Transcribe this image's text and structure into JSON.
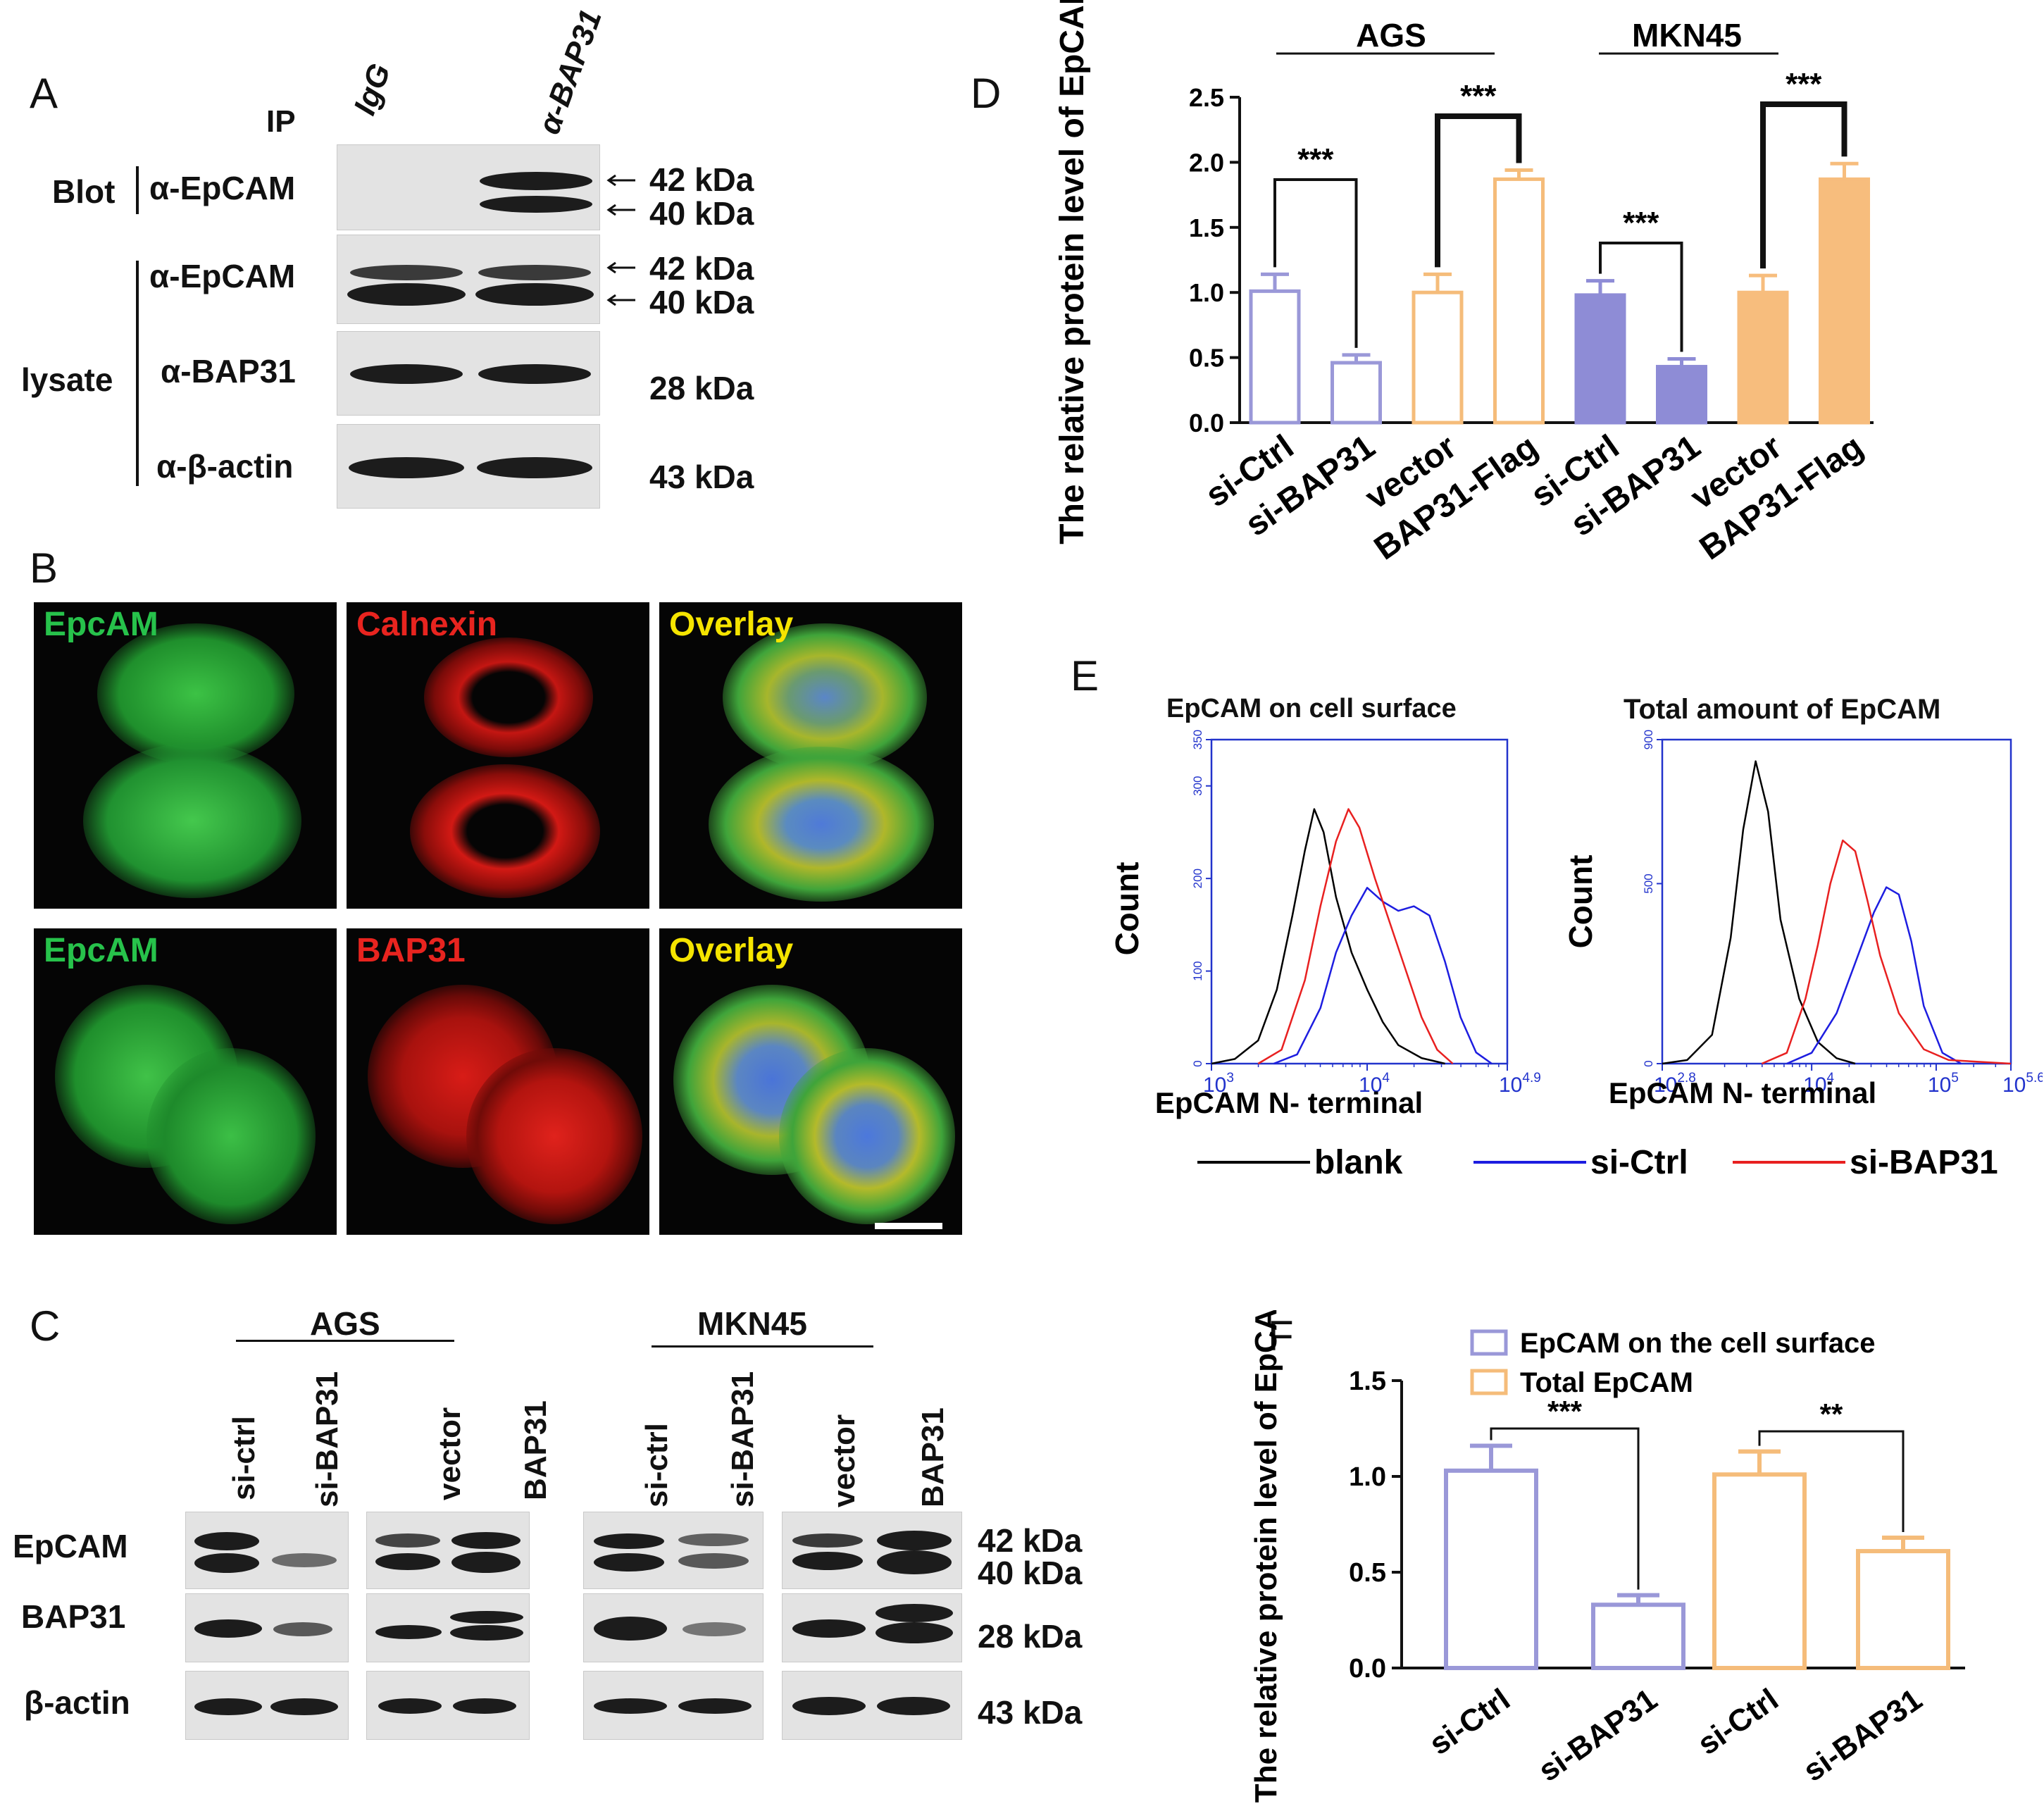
{
  "panel_a": {
    "letter": "A",
    "ip_label": "IP",
    "lane_igg": "IgG",
    "lane_bap31": "α-BAP31",
    "blot_label": "Blot",
    "lysate_label": "lysate",
    "rows": [
      {
        "antibody": "α-EpCAM",
        "sizes": [
          "42 kDa",
          "40 kDa"
        ]
      },
      {
        "antibody": "α-EpCAM",
        "sizes": [
          "42 kDa",
          "40 kDa"
        ]
      },
      {
        "antibody": "α-BAP31",
        "sizes": [
          "28 kDa"
        ]
      },
      {
        "antibody": "α-β-actin",
        "sizes": [
          "43 kDa"
        ]
      }
    ]
  },
  "panel_b": {
    "letter": "B",
    "row1": [
      "EpcAM",
      "Calnexin",
      "Overlay"
    ],
    "row2": [
      "EpcAM",
      "BAP31",
      "Overlay"
    ],
    "colors": {
      "green": "#27c24b",
      "red": "#e8241f",
      "yellow": "#f5e400"
    }
  },
  "panel_c": {
    "letter": "C",
    "group_ags": "AGS",
    "group_mkn45": "MKN45",
    "lanes": [
      "si-ctrl",
      "si-BAP31",
      "vector",
      "BAP31",
      "si-ctrl",
      "si-BAP31",
      "vector",
      "BAP31"
    ],
    "rows": [
      "EpCAM",
      "BAP31",
      "β-actin"
    ],
    "sizes": [
      "42 kDa",
      "40 kDa",
      "28 kDa",
      "43 kDa"
    ]
  },
  "panel_d": {
    "letter": "D",
    "group_ags": "AGS",
    "group_mkn45": "MKN45",
    "sig": [
      "***",
      "***",
      "***",
      "***"
    ]
  },
  "panel_e": {
    "letter": "E",
    "left_title": "EpCAM on cell surface",
    "right_title": "Total amount of EpCAM",
    "ylabel": "Count",
    "xlabel": "EpCAM N- terminal",
    "left_yticks": [
      "0",
      "100",
      "200",
      "300",
      "350"
    ],
    "right_yticks": [
      "0",
      "500",
      "900"
    ],
    "left_xticks": [
      {
        "base": "10",
        "exp": "3"
      },
      {
        "base": "10",
        "exp": "4"
      },
      {
        "base": "10",
        "exp": "4.9"
      }
    ],
    "right_xticks": [
      {
        "base": "10",
        "exp": "2.8"
      },
      {
        "base": "10",
        "exp": "4"
      },
      {
        "base": "10",
        "exp": "5"
      },
      {
        "base": "10",
        "exp": "5.6"
      }
    ],
    "legend": [
      {
        "label": "blank",
        "color": "#000000"
      },
      {
        "label": "si-Ctrl",
        "color": "#1d1de0"
      },
      {
        "label": "si-BAP31",
        "color": "#e82020"
      }
    ]
  },
  "panel_f": {
    "letter": "F",
    "sig": [
      "***",
      "**"
    ]
  },
  "chart_data": [
    {
      "type": "bar",
      "panel": "D",
      "ylabel": "The relative protein level of EpCAM",
      "ylim": [
        0,
        2.5
      ],
      "yticks": [
        "0.0",
        "0.5",
        "1.0",
        "1.5",
        "2.0",
        "2.5"
      ],
      "categories": [
        "si-Ctrl",
        "si-BAP31",
        "vector",
        "BAP31-Flag",
        "si-Ctrl",
        "si-BAP31",
        "vector",
        "BAP31-Flag"
      ],
      "values": [
        1.01,
        0.46,
        1.0,
        1.87,
        0.98,
        0.43,
        1.0,
        1.87
      ],
      "errors": [
        0.13,
        0.06,
        0.14,
        0.07,
        0.11,
        0.06,
        0.13,
        0.12
      ],
      "filled": [
        false,
        false,
        false,
        false,
        true,
        true,
        true,
        true
      ],
      "colors": [
        "#9a98d8",
        "#9a98d8",
        "#f5bc7a",
        "#f5bc7a",
        "#8e8cd6",
        "#8e8cd6",
        "#f7bd7d",
        "#f7bd7d"
      ]
    },
    {
      "type": "line",
      "panel": "E-left",
      "title": "EpCAM on cell surface",
      "xlabel": "EpCAM N- terminal",
      "ylabel": "Count",
      "xlim_log10": [
        3,
        4.9
      ],
      "ylim": [
        0,
        350
      ],
      "series": [
        {
          "name": "blank",
          "color": "#000000",
          "x": [
            3.0,
            3.15,
            3.3,
            3.42,
            3.52,
            3.6,
            3.66,
            3.72,
            3.8,
            3.9,
            4.0,
            4.1,
            4.2,
            4.35,
            4.5
          ],
          "y": [
            0,
            5,
            25,
            80,
            160,
            230,
            275,
            250,
            180,
            120,
            80,
            45,
            20,
            6,
            0
          ]
        },
        {
          "name": "si-Ctrl",
          "color": "#1d1de0",
          "x": [
            3.4,
            3.55,
            3.7,
            3.8,
            3.9,
            4.0,
            4.1,
            4.2,
            4.3,
            4.4,
            4.5,
            4.6,
            4.7,
            4.8
          ],
          "y": [
            0,
            10,
            60,
            120,
            160,
            190,
            175,
            165,
            170,
            160,
            110,
            50,
            12,
            0
          ]
        },
        {
          "name": "si-BAP31",
          "color": "#e82020",
          "x": [
            3.3,
            3.45,
            3.6,
            3.7,
            3.8,
            3.88,
            3.95,
            4.05,
            4.15,
            4.25,
            4.35,
            4.45,
            4.55
          ],
          "y": [
            0,
            15,
            90,
            170,
            240,
            275,
            255,
            200,
            150,
            100,
            50,
            15,
            0
          ]
        }
      ]
    },
    {
      "type": "line",
      "panel": "E-right",
      "title": "Total amount of EpCAM",
      "xlabel": "EpCAM N- terminal",
      "ylabel": "Count",
      "xlim_log10": [
        2.8,
        5.6
      ],
      "ylim": [
        0,
        900
      ],
      "series": [
        {
          "name": "blank",
          "color": "#000000",
          "x": [
            2.8,
            3.0,
            3.2,
            3.35,
            3.45,
            3.55,
            3.65,
            3.75,
            3.9,
            4.05,
            4.2,
            4.35
          ],
          "y": [
            0,
            10,
            80,
            350,
            650,
            840,
            700,
            400,
            180,
            60,
            15,
            0
          ]
        },
        {
          "name": "si-Ctrl",
          "color": "#1d1de0",
          "x": [
            3.8,
            4.0,
            4.2,
            4.35,
            4.5,
            4.6,
            4.7,
            4.8,
            4.9,
            5.05,
            5.2
          ],
          "y": [
            0,
            30,
            140,
            280,
            420,
            490,
            470,
            340,
            160,
            30,
            0
          ]
        },
        {
          "name": "si-BAP31",
          "color": "#e82020",
          "x": [
            3.6,
            3.8,
            3.95,
            4.05,
            4.15,
            4.25,
            4.35,
            4.45,
            4.55,
            4.7,
            4.9,
            5.1,
            5.6
          ],
          "y": [
            0,
            30,
            180,
            330,
            500,
            620,
            590,
            450,
            300,
            140,
            40,
            10,
            0
          ]
        }
      ]
    },
    {
      "type": "bar",
      "panel": "F",
      "ylabel": "The relative protein level of EpCAM",
      "ylim": [
        0,
        1.5
      ],
      "yticks": [
        "0.0",
        "0.5",
        "1.0",
        "1.5"
      ],
      "categories": [
        "si-Ctrl",
        "si-BAP31",
        "si-Ctrl",
        "si-BAP31"
      ],
      "values": [
        1.03,
        0.33,
        1.01,
        0.61
      ],
      "errors": [
        0.13,
        0.05,
        0.12,
        0.07
      ],
      "colors": [
        "#9a98d8",
        "#9a98d8",
        "#f5bc7a",
        "#f5bc7a"
      ],
      "legend": [
        {
          "label": "EpCAM on the cell surface",
          "color": "#9a98d8"
        },
        {
          "label": "Total EpCAM",
          "color": "#f5bc7a"
        }
      ]
    }
  ]
}
